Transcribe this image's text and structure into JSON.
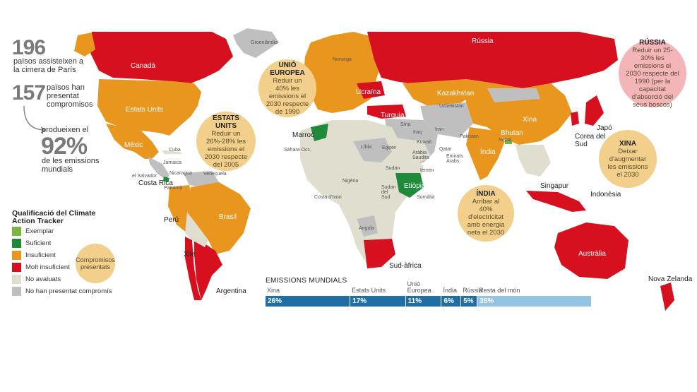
{
  "colors": {
    "exemplar": "#7cb540",
    "suficient": "#1f8a3a",
    "insuficient": "#e8961e",
    "molt_insuficient": "#d6101f",
    "no_avaluats": "#e0dfcf",
    "no_compromis": "#bfbfbf",
    "callout": "#f2cf8a",
    "callout_russia": "#f3b5b8",
    "bar_dark": "#1f6ea5",
    "bar_light": "#93c4e2"
  },
  "stats": {
    "s1_number": "196",
    "s1_text": "països assisteixen a la cimera de París",
    "s2_number": "157",
    "s2_text": "països han presentat compromisos",
    "s3_pre": "produeixen el",
    "s3_number": "92%",
    "s3_text": "de les emissions mundials"
  },
  "legend": {
    "title": "Qualificació del Climate Action Tracker",
    "items": [
      {
        "label": "Exemplar",
        "color_key": "exemplar"
      },
      {
        "label": "Suficient",
        "color_key": "suficient"
      },
      {
        "label": "Insuficient",
        "color_key": "insuficient"
      },
      {
        "label": "Molt insuficient",
        "color_key": "molt_insuficient"
      },
      {
        "label": "No avaluats",
        "color_key": "no_avaluats"
      },
      {
        "label": "No han presentat compromís",
        "color_key": "no_compromis"
      }
    ],
    "callout_key": "Compromisos presentats"
  },
  "callouts": {
    "ue_title": "UNIÓ EUROPEA",
    "ue_text": "Reduir un 40% les emissions el 2030 respecte de 1990",
    "eua_title": "ESTATS UNITS",
    "eua_text": "Reduir un 26%-28% les emissions el 2030 respecte del 2005",
    "russia_title": "RÚSSIA",
    "russia_text": "Reduir un 25-30% les emissions el 2030 respecte del 1990 (per la capacitat d'absorció del seus boscos)",
    "xina_title": "XINA",
    "xina_text": "Deixar d'augmentar les emissions el 2030",
    "india_title": "ÍNDIA",
    "india_text": "Arribar al 40% d'electricitat amb energia neta el 2030"
  },
  "countries": {
    "canada": "Canadà",
    "usa": "Estats Units",
    "mexic": "Mèxic",
    "cuba": "Cuba",
    "jamaica": "Jamaica",
    "salvador": "el Salvador",
    "nicaragua": "Nicaragua",
    "costarica": "Costa Rica",
    "panama": "Panamà",
    "veneçuela": "Veneçuela",
    "brasil": "Brasil",
    "peru": "Perú",
    "xile": "Xile",
    "argentina": "Argentina",
    "groenlandia": "Groenlàndia",
    "russia": "Rússia",
    "noruega": "Noruega",
    "ucraina": "Ucraïna",
    "kazakhstan": "Kazakhstan",
    "uzbekistan": "Uzbekistan",
    "turquia": "Turquia",
    "siria": "Síria",
    "iraq": "Iraq",
    "iran": "Iran",
    "kuwait": "Kuwait",
    "qatar": "Qatar",
    "emirats": "Emirats Àrabs",
    "arabia": "Aràbia Saudita",
    "iemen": "Iemen",
    "pakistan": "Pakistan",
    "marroc": "Marroc",
    "sahara": "Sàhara Occ.",
    "libia": "Líbia",
    "egipte": "Egipte",
    "sudan": "Sudan",
    "sudansud": "Sudan del Sud",
    "etiopia": "Etiòpia",
    "somalia": "Somàlia",
    "nigeria": "Nigèria",
    "costaivori": "Costa d'Ivori",
    "angola": "Angola",
    "sudafrica": "Sud-àfrica",
    "xina": "Xina",
    "bhutan": "Bhutan",
    "nepal": "Nepal",
    "india": "Índia",
    "corea": "Corea del Sud",
    "japo": "Japó",
    "singapur": "Singapur",
    "indonesia": "Indonèsia",
    "australia": "Austràlia",
    "nz": "Nova Zelanda"
  },
  "emissions": {
    "title": "EMISSIONS MUNDIALS",
    "bars": [
      {
        "name": "Xina",
        "value": 26,
        "label": "26%",
        "color_key": "bar_dark"
      },
      {
        "name": "Estats Units",
        "value": 17,
        "label": "17%",
        "color_key": "bar_dark"
      },
      {
        "name": "Unió Europea",
        "value": 11,
        "label": "11%",
        "color_key": "bar_dark"
      },
      {
        "name": "Índia",
        "value": 6,
        "label": "6%",
        "color_key": "bar_dark"
      },
      {
        "name": "Rússia",
        "value": 5,
        "label": "5%",
        "color_key": "bar_dark"
      },
      {
        "name": "Resta del món",
        "value": 35,
        "label": "35%",
        "color_key": "bar_light"
      }
    ]
  }
}
